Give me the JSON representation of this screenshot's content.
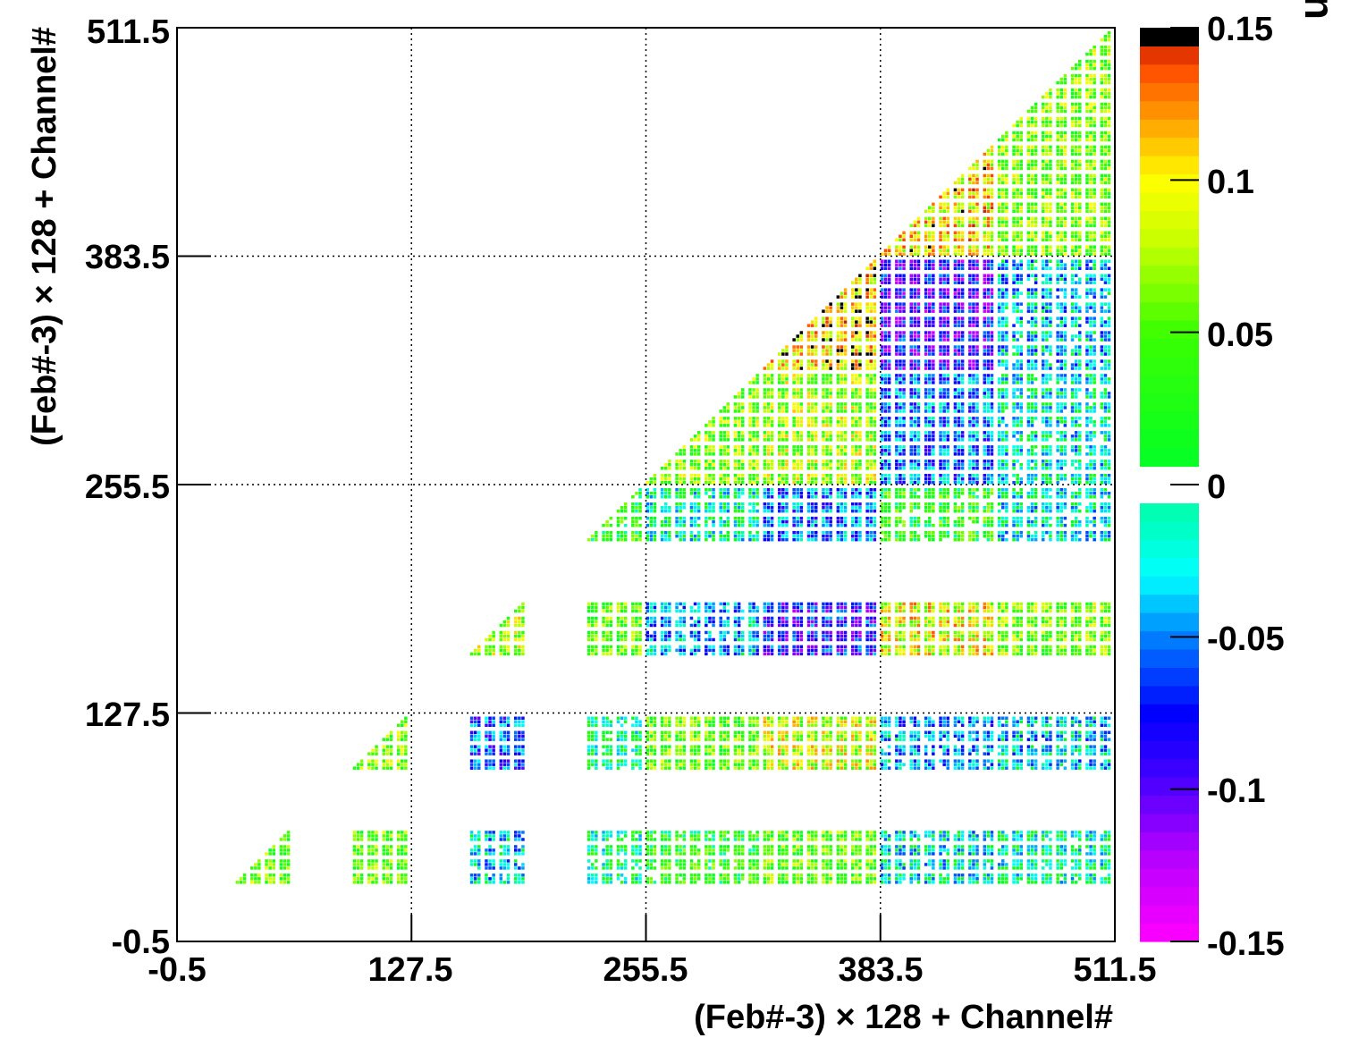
{
  "chart_data": {
    "type": "heatmap",
    "title": "",
    "xlabel": "(Feb#-3) × 128 + Channel#",
    "ylabel": "(Feb#-3) × 128 + Channel#",
    "zlabel": "Correlation",
    "xlim": [
      -0.5,
      511.5
    ],
    "ylim": [
      -0.5,
      511.5
    ],
    "zlim": [
      -0.15,
      0.15
    ],
    "x_ticks": [
      "-0.5",
      "127.5",
      "255.5",
      "383.5",
      "511.5"
    ],
    "y_ticks": [
      "-0.5",
      "127.5",
      "255.5",
      "383.5",
      "511.5"
    ],
    "z_ticks": [
      "0.15",
      "0.1",
      "0.05",
      "0",
      "-0.05",
      "-0.1",
      "-0.15"
    ],
    "grid": true,
    "colorbar": "right",
    "colors": {
      "white_band_note": "values near 0 are white",
      "palette": [
        "#ff00ff",
        "#b000ff",
        "#3f00ff",
        "#0000ff",
        "#0080ff",
        "#00ffff",
        "#00ffa0",
        "#ffffff",
        "#00ff20",
        "#80ff00",
        "#ffff00",
        "#ffa000",
        "#ff5000",
        "#000000"
      ]
    },
    "blocks": [
      {
        "x": [
          32,
          63
        ],
        "y": [
          32,
          63
        ],
        "shape": "triangle",
        "mean": 0.05
      },
      {
        "x": [
          96,
          127
        ],
        "y": [
          32,
          63
        ],
        "shape": "square",
        "mean": 0.05
      },
      {
        "x": [
          160,
          191
        ],
        "y": [
          32,
          63
        ],
        "shape": "square",
        "mean": -0.03
      },
      {
        "x": [
          224,
          255
        ],
        "y": [
          32,
          63
        ],
        "shape": "square",
        "mean": 0.0
      },
      {
        "x": [
          256,
          319
        ],
        "y": [
          32,
          63
        ],
        "shape": "square",
        "mean": 0.03
      },
      {
        "x": [
          320,
          383
        ],
        "y": [
          32,
          63
        ],
        "shape": "square",
        "mean": 0.05
      },
      {
        "x": [
          384,
          447
        ],
        "y": [
          32,
          63
        ],
        "shape": "square",
        "mean": -0.02
      },
      {
        "x": [
          448,
          511
        ],
        "y": [
          32,
          63
        ],
        "shape": "square",
        "mean": -0.01
      },
      {
        "x": [
          96,
          127
        ],
        "y": [
          96,
          127
        ],
        "shape": "triangle",
        "mean": 0.06
      },
      {
        "x": [
          160,
          191
        ],
        "y": [
          96,
          127
        ],
        "shape": "square",
        "mean": -0.06
      },
      {
        "x": [
          224,
          255
        ],
        "y": [
          96,
          127
        ],
        "shape": "square",
        "mean": 0.0
      },
      {
        "x": [
          256,
          319
        ],
        "y": [
          96,
          127
        ],
        "shape": "square",
        "mean": 0.05
      },
      {
        "x": [
          320,
          383
        ],
        "y": [
          96,
          127
        ],
        "shape": "square",
        "mean": 0.08
      },
      {
        "x": [
          384,
          447
        ],
        "y": [
          96,
          127
        ],
        "shape": "square",
        "mean": -0.04
      },
      {
        "x": [
          448,
          511
        ],
        "y": [
          96,
          127
        ],
        "shape": "square",
        "mean": -0.03
      },
      {
        "x": [
          160,
          191
        ],
        "y": [
          160,
          191
        ],
        "shape": "triangle",
        "mean": 0.07
      },
      {
        "x": [
          224,
          255
        ],
        "y": [
          160,
          191
        ],
        "shape": "square",
        "mean": 0.05
      },
      {
        "x": [
          256,
          319
        ],
        "y": [
          160,
          191
        ],
        "shape": "square",
        "mean": -0.04
      },
      {
        "x": [
          320,
          383
        ],
        "y": [
          160,
          191
        ],
        "shape": "square",
        "mean": -0.08
      },
      {
        "x": [
          384,
          447
        ],
        "y": [
          160,
          191
        ],
        "shape": "square",
        "mean": 0.09
      },
      {
        "x": [
          448,
          511
        ],
        "y": [
          160,
          191
        ],
        "shape": "square",
        "mean": 0.06
      },
      {
        "x": [
          224,
          255
        ],
        "y": [
          224,
          255
        ],
        "shape": "triangle",
        "mean": 0.03
      },
      {
        "x": [
          256,
          319
        ],
        "y": [
          224,
          255
        ],
        "shape": "square",
        "mean": -0.01
      },
      {
        "x": [
          320,
          383
        ],
        "y": [
          224,
          255
        ],
        "shape": "square",
        "mean": -0.05
      },
      {
        "x": [
          384,
          447
        ],
        "y": [
          224,
          255
        ],
        "shape": "square",
        "mean": 0.03
      },
      {
        "x": [
          448,
          511
        ],
        "y": [
          224,
          255
        ],
        "shape": "square",
        "mean": -0.02
      },
      {
        "x": [
          256,
          319
        ],
        "y": [
          256,
          319
        ],
        "shape": "triangle",
        "mean": 0.06
      },
      {
        "x": [
          320,
          383
        ],
        "y": [
          256,
          319
        ],
        "shape": "square",
        "mean": 0.07
      },
      {
        "x": [
          384,
          447
        ],
        "y": [
          256,
          319
        ],
        "shape": "square",
        "mean": -0.05
      },
      {
        "x": [
          448,
          511
        ],
        "y": [
          256,
          319
        ],
        "shape": "square",
        "mean": -0.02
      },
      {
        "x": [
          320,
          383
        ],
        "y": [
          320,
          383
        ],
        "shape": "triangle",
        "mean": 0.11
      },
      {
        "x": [
          384,
          447
        ],
        "y": [
          320,
          383
        ],
        "shape": "square",
        "mean": -0.09
      },
      {
        "x": [
          448,
          511
        ],
        "y": [
          320,
          383
        ],
        "shape": "square",
        "mean": -0.03
      },
      {
        "x": [
          384,
          447
        ],
        "y": [
          384,
          447
        ],
        "shape": "triangle",
        "mean": 0.1
      },
      {
        "x": [
          448,
          511
        ],
        "y": [
          384,
          447
        ],
        "shape": "square",
        "mean": 0.06
      },
      {
        "x": [
          448,
          511
        ],
        "y": [
          448,
          511
        ],
        "shape": "triangle",
        "mean": 0.06
      }
    ]
  }
}
